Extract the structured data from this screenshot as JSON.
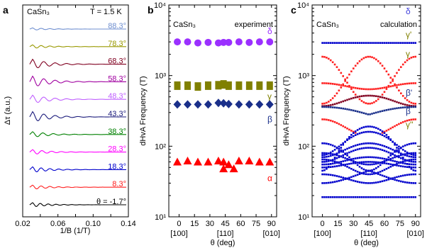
{
  "chart_data": [
    {
      "panel_letter": "a",
      "type": "line",
      "material": "CaSn₃",
      "temperature": "T = 1.5 K",
      "xlabel": "1/B (1/T)",
      "ylabel": "Δτ (a.u.)",
      "xlim": [
        0.02,
        0.14
      ],
      "xticks": [
        "0.02",
        "0.04",
        "0.06",
        "0.08",
        "0.10",
        "0.12",
        "0.14"
      ],
      "traces": [
        {
          "label": "88.3°",
          "color": "#6f8fd0",
          "period": 0.01,
          "amp": 1.6
        },
        {
          "label": "78.3°",
          "color": "#999900",
          "period": 0.01,
          "amp": 2.5
        },
        {
          "label": "68.3°",
          "color": "#800020",
          "period": 0.013,
          "amp": 7.0
        },
        {
          "label": "58.3°",
          "color": "#a000a0",
          "period": 0.013,
          "amp": 8.0
        },
        {
          "label": "48.3°",
          "color": "#c060ff",
          "period": 0.013,
          "amp": 6.0
        },
        {
          "label": "43.3°",
          "color": "#1c1c7c",
          "period": 0.013,
          "amp": 7.5
        },
        {
          "label": "38.3°",
          "color": "#008000",
          "period": 0.012,
          "amp": 4.0
        },
        {
          "label": "28.3°",
          "color": "#ff00ff",
          "period": 0.011,
          "amp": 3.5
        },
        {
          "label": "18.3°",
          "color": "#0000cc",
          "period": 0.01,
          "amp": 4.0
        },
        {
          "label": "8.3°",
          "color": "#ff2020",
          "period": 0.01,
          "amp": 3.0
        },
        {
          "label": "θ = -1.7°",
          "color": "#000000",
          "period": 0.009,
          "amp": 3.0
        }
      ]
    },
    {
      "panel_letter": "b",
      "type": "scatter",
      "material": "CaSn₃",
      "mode": "experiment",
      "xlabel": "θ (deg)",
      "ylabel": "dHvA Frequency (T)",
      "yscale": "log",
      "ylim": [
        10,
        10000
      ],
      "xlim": [
        -10,
        95
      ],
      "xticks": [
        "0",
        "15",
        "30",
        "45",
        "60",
        "75",
        "90"
      ],
      "ytick_labels": [
        "10¹",
        "10²",
        "10³",
        "10⁴"
      ],
      "direction_labels": [
        "[100]",
        "[110]",
        "[010]"
      ],
      "series": [
        {
          "name": "δ",
          "marker": "circle",
          "color": "#9b30ff",
          "x": [
            -1.7,
            8.3,
            18.3,
            28.3,
            38.3,
            43.3,
            48.3,
            58.3,
            68.3,
            78.3,
            88.3
          ],
          "y": [
            3000,
            3000,
            2900,
            2950,
            2900,
            2950,
            2950,
            3000,
            2950,
            3000,
            3000
          ]
        },
        {
          "name": "γ",
          "marker": "square",
          "color": "#808000",
          "x": [
            -1.7,
            8.3,
            18.3,
            28.3,
            38.3,
            43.3,
            48.3,
            58.3,
            68.3,
            78.3,
            88.3
          ],
          "y": [
            720,
            720,
            700,
            720,
            730,
            750,
            720,
            720,
            720,
            720,
            720
          ]
        },
        {
          "name": "β",
          "marker": "diamond",
          "color": "#1a2f8a",
          "x": [
            -1.7,
            8.3,
            18.3,
            28.3,
            38.3,
            43.3,
            48.3,
            58.3,
            68.3,
            78.3,
            88.3
          ],
          "y": [
            390,
            390,
            390,
            390,
            410,
            405,
            395,
            390,
            390,
            390,
            390
          ]
        },
        {
          "name": "α",
          "marker": "triangle",
          "color": "#ff0000",
          "x": [
            -1.7,
            8.3,
            18.3,
            28.3,
            38.3,
            43.3,
            43.3,
            48.3,
            53.3,
            58.3,
            68.3,
            78.3,
            88.3
          ],
          "y": [
            60,
            62,
            60,
            60,
            62,
            60,
            48,
            55,
            48,
            62,
            62,
            60,
            60
          ]
        }
      ]
    },
    {
      "panel_letter": "c",
      "type": "scatter",
      "material": "CaSn₃",
      "mode": "calculation",
      "xlabel": "θ (deg)",
      "ylabel": "dHvA Frequency (T)",
      "yscale": "log",
      "ylim": [
        10,
        10000
      ],
      "xlim": [
        -10,
        95
      ],
      "xticks": [
        "0",
        "15",
        "30",
        "45",
        "60",
        "75",
        "90"
      ],
      "ytick_labels": [
        "10¹",
        "10²",
        "10³",
        "10⁴"
      ],
      "direction_labels": [
        "[100]",
        "[110]",
        "[010]"
      ],
      "band_labels": [
        {
          "text": "δ",
          "color": "#4444dd"
        },
        {
          "text": "γ'",
          "color": "#808000"
        },
        {
          "text": "γ",
          "color": "#808000"
        },
        {
          "text": "β'",
          "color": "#1a2f8a"
        },
        {
          "text": "β",
          "color": "#1a2f8a"
        },
        {
          "text": "γ''",
          "color": "#808000"
        }
      ],
      "series": [
        {
          "name": "δ",
          "color": "#0000cc",
          "f": "const",
          "a": 2900
        },
        {
          "name": "γ' upper",
          "color": "#ff2020",
          "f": "quad",
          "a": 400,
          "b": 1850
        },
        {
          "name": "γ' lower",
          "color": "#ff2020",
          "f": "quad",
          "a": 1850,
          "b": 400
        },
        {
          "name": "γ",
          "color": "#ff2020",
          "f": "sin2",
          "a": 780,
          "b": 640
        },
        {
          "name": "β'",
          "color": "#800020",
          "f": "sin2",
          "a": 370,
          "b": 520
        },
        {
          "name": "β",
          "color": "#1a2f8a",
          "f": "cross",
          "a": 360,
          "b": 280
        },
        {
          "name": "γ''",
          "color": "#ff2020",
          "f": "gap",
          "a": 240,
          "b": 140
        },
        {
          "name": "low 1",
          "color": "#0000cc",
          "f": "sin2",
          "a": 45,
          "b": 190
        },
        {
          "name": "low 2",
          "color": "#0000cc",
          "f": "sin2",
          "a": 110,
          "b": 45
        },
        {
          "name": "low 3",
          "color": "#0000cc",
          "f": "sin2",
          "a": 70,
          "b": 110
        },
        {
          "name": "low 4",
          "color": "#0000cc",
          "f": "sin2",
          "a": 80,
          "b": 55
        },
        {
          "name": "low 5",
          "color": "#0000cc",
          "f": "sin2",
          "a": 60,
          "b": 95
        },
        {
          "name": "low 6",
          "color": "#0000cc",
          "f": "sin2",
          "a": 55,
          "b": 70
        },
        {
          "name": "low 7",
          "color": "#0000cc",
          "f": "sin2",
          "a": 50,
          "b": 60
        },
        {
          "name": "low 8",
          "color": "#0000cc",
          "f": "sin2",
          "a": 65,
          "b": 40
        },
        {
          "name": "low 9",
          "color": "#0000cc",
          "f": "sin2",
          "a": 40,
          "b": 30
        },
        {
          "name": "low 10",
          "color": "#0000cc",
          "f": "cross",
          "a": 30,
          "b": 45
        },
        {
          "name": "low 11",
          "color": "#0000cc",
          "f": "const",
          "a": 19
        },
        {
          "name": "low 12",
          "color": "#0000cc",
          "f": "sin2",
          "a": 75,
          "b": 160
        }
      ]
    }
  ]
}
